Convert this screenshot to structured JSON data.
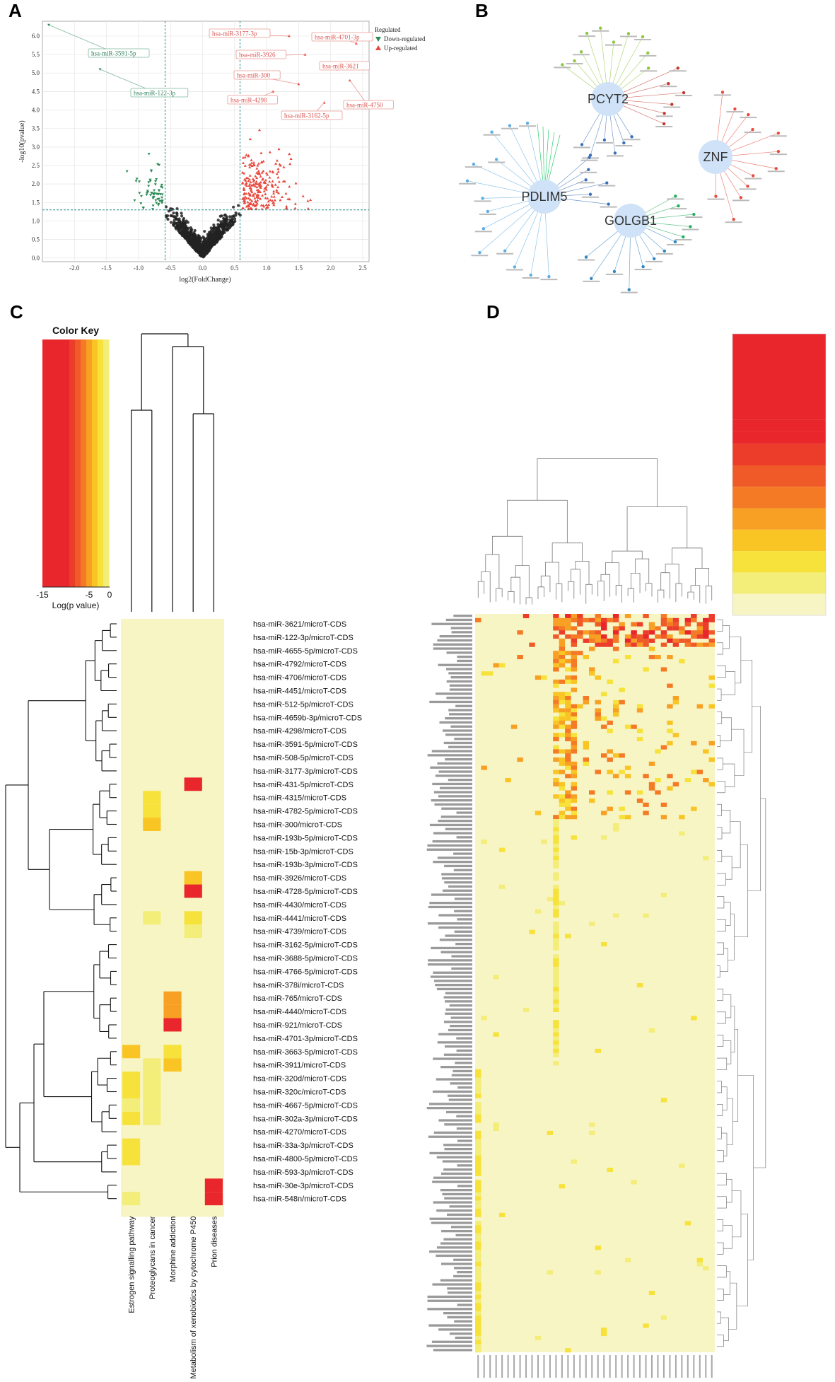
{
  "panels": {
    "a": "A",
    "b": "B",
    "c": "C",
    "d": "D"
  },
  "chart_data": [
    {
      "type": "scatter",
      "panel": "A",
      "xlabel": "log2(FoldChange)",
      "ylabel": "-log10(pvalue)",
      "xlim": [
        -2.5,
        2.6
      ],
      "ylim": [
        -0.1,
        6.4
      ],
      "xticks": [
        "-2.0",
        "-1.5",
        "-1.0",
        "-0.5",
        "0.0",
        "0.5",
        "1.0",
        "1.5",
        "2.0",
        "2.5"
      ],
      "yticks": [
        "0.0",
        "0.5",
        "1.0",
        "1.5",
        "2.0",
        "2.5",
        "3.0",
        "3.5",
        "4.0",
        "4.5",
        "5.0",
        "5.5",
        "6.0"
      ],
      "thresholds": {
        "x": [
          -0.585,
          0.585
        ],
        "y": 1.3
      },
      "legend": {
        "title": "Regulated",
        "down": "Down-regulated",
        "up": "Up-regulated"
      },
      "colors": {
        "down": "#2e8b57",
        "up": "#e8473c",
        "ns": "#222222"
      },
      "labeled_points": [
        {
          "name": "hsa-miR-3591-5p",
          "x": -2.4,
          "y": 6.3,
          "dir": "down"
        },
        {
          "name": "hsa-miR-122-3p",
          "x": -1.6,
          "y": 5.1,
          "dir": "down"
        },
        {
          "name": "hsa-miR-3177-3p",
          "x": 1.35,
          "y": 6.0,
          "dir": "up"
        },
        {
          "name": "hsa-miR-4701-3p",
          "x": 2.4,
          "y": 5.8,
          "dir": "up"
        },
        {
          "name": "hsa-miR-3926",
          "x": 1.6,
          "y": 5.5,
          "dir": "up"
        },
        {
          "name": "hsa-miR-3621",
          "x": 2.1,
          "y": 5.1,
          "dir": "up"
        },
        {
          "name": "hsa-miR-300",
          "x": 1.5,
          "y": 4.7,
          "dir": "up"
        },
        {
          "name": "hsa-miR-4298",
          "x": 1.1,
          "y": 4.5,
          "dir": "up"
        },
        {
          "name": "hsa-miR-4750",
          "x": 2.3,
          "y": 4.8,
          "dir": "up"
        },
        {
          "name": "hsa-miR-3162-5p",
          "x": 1.9,
          "y": 4.2,
          "dir": "up"
        }
      ]
    },
    {
      "type": "network",
      "panel": "B",
      "hubs": [
        "PCYT2",
        "ZNF",
        "PDLIM5",
        "GOLGB1"
      ]
    },
    {
      "type": "heatmap",
      "panel": "C",
      "color_key": {
        "title": "Color Key",
        "xlabel": "Log(p value)",
        "ticks": [
          "-15",
          "-5",
          "0"
        ]
      },
      "palette": [
        "#e8262b",
        "#ec3d2a",
        "#f05a28",
        "#f47a26",
        "#f7a024",
        "#f9c525",
        "#f6e23a",
        "#f3ed79",
        "#f8f5c4"
      ],
      "columns": [
        "Estrogen signalling pathway",
        "Proteoglycans in cancer",
        "Morphine addiction",
        "Metabolism of xenobiotics by cytochrome P450",
        "Prion diseases"
      ],
      "rows": [
        "hsa-miR-3621/microT-CDS",
        "hsa-miR-122-3p/microT-CDS",
        "hsa-miR-4655-5p/microT-CDS",
        "hsa-miR-4792/microT-CDS",
        "hsa-miR-4706/microT-CDS",
        "hsa-miR-4451/microT-CDS",
        "hsa-miR-512-5p/microT-CDS",
        "hsa-miR-4659b-3p/microT-CDS",
        "hsa-miR-4298/microT-CDS",
        "hsa-miR-3591-5p/microT-CDS",
        "hsa-miR-508-5p/microT-CDS",
        "hsa-miR-3177-3p/microT-CDS",
        "hsa-miR-431-5p/microT-CDS",
        "hsa-miR-4315/microT-CDS",
        "hsa-miR-4782-5p/microT-CDS",
        "hsa-miR-300/microT-CDS",
        "hsa-miR-193b-5p/microT-CDS",
        "hsa-miR-15b-3p/microT-CDS",
        "hsa-miR-193b-3p/microT-CDS",
        "hsa-miR-3926/microT-CDS",
        "hsa-miR-4728-5p/microT-CDS",
        "hsa-miR-4430/microT-CDS",
        "hsa-miR-4441/microT-CDS",
        "hsa-miR-4739/microT-CDS",
        "hsa-miR-3162-5p/microT-CDS",
        "hsa-miR-3688-5p/microT-CDS",
        "hsa-miR-4766-5p/microT-CDS",
        "hsa-miR-378i/microT-CDS",
        "hsa-miR-765/microT-CDS",
        "hsa-miR-4440/microT-CDS",
        "hsa-miR-921/microT-CDS",
        "hsa-miR-4701-3p/microT-CDS",
        "hsa-miR-3663-5p/microT-CDS",
        "hsa-miR-3911/microT-CDS",
        "hsa-miR-320d/microT-CDS",
        "hsa-miR-320c/microT-CDS",
        "hsa-miR-4667-5p/microT-CDS",
        "hsa-miR-302a-3p/microT-CDS",
        "hsa-miR-4270/microT-CDS",
        "hsa-miR-33a-3p/microT-CDS",
        "hsa-miR-4800-5p/microT-CDS",
        "hsa-miR-593-3p/microT-CDS",
        "hsa-miR-30e-3p/microT-CDS",
        "hsa-miR-548n/microT-CDS"
      ],
      "cells": [
        {
          "row": 12,
          "col": 3,
          "level": 0
        },
        {
          "row": 13,
          "col": 1,
          "level": 6
        },
        {
          "row": 14,
          "col": 1,
          "level": 6
        },
        {
          "row": 15,
          "col": 1,
          "level": 5
        },
        {
          "row": 19,
          "col": 3,
          "level": 5
        },
        {
          "row": 20,
          "col": 3,
          "level": 0
        },
        {
          "row": 22,
          "col": 1,
          "level": 7
        },
        {
          "row": 22,
          "col": 3,
          "level": 6
        },
        {
          "row": 23,
          "col": 3,
          "level": 7
        },
        {
          "row": 28,
          "col": 2,
          "level": 4
        },
        {
          "row": 29,
          "col": 2,
          "level": 4
        },
        {
          "row": 30,
          "col": 2,
          "level": 0
        },
        {
          "row": 32,
          "col": 0,
          "level": 5
        },
        {
          "row": 32,
          "col": 2,
          "level": 6
        },
        {
          "row": 33,
          "col": 1,
          "level": 7
        },
        {
          "row": 33,
          "col": 2,
          "level": 5
        },
        {
          "row": 34,
          "col": 0,
          "level": 6
        },
        {
          "row": 34,
          "col": 1,
          "level": 7
        },
        {
          "row": 35,
          "col": 0,
          "level": 6
        },
        {
          "row": 35,
          "col": 1,
          "level": 7
        },
        {
          "row": 36,
          "col": 0,
          "level": 7
        },
        {
          "row": 36,
          "col": 1,
          "level": 7
        },
        {
          "row": 37,
          "col": 0,
          "level": 6
        },
        {
          "row": 37,
          "col": 1,
          "level": 7
        },
        {
          "row": 39,
          "col": 0,
          "level": 6
        },
        {
          "row": 40,
          "col": 0,
          "level": 6
        },
        {
          "row": 42,
          "col": 4,
          "level": 0
        },
        {
          "row": 43,
          "col": 0,
          "level": 7
        },
        {
          "row": 43,
          "col": 4,
          "level": 0
        }
      ]
    },
    {
      "type": "heatmap",
      "panel": "D",
      "columns_count": 40,
      "rows_count": 180
    }
  ]
}
